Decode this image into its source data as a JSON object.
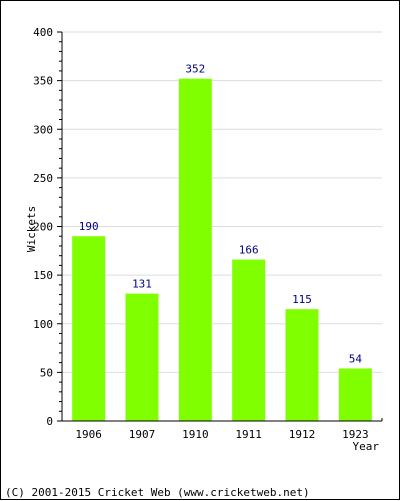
{
  "chart_data": {
    "type": "bar",
    "categories": [
      "1906",
      "1907",
      "1910",
      "1911",
      "1912",
      "1923"
    ],
    "values": [
      190,
      131,
      352,
      166,
      115,
      54
    ],
    "data_labels": [
      "190",
      "131",
      "352",
      "166",
      "115",
      "54"
    ],
    "title": "",
    "xlabel": "Year",
    "ylabel": "Wickets",
    "ylim": [
      0,
      400
    ],
    "yticks": [
      0,
      50,
      100,
      150,
      200,
      250,
      300,
      350,
      400
    ],
    "ytick_labels": [
      "0",
      "50",
      "100",
      "150",
      "200",
      "250",
      "300",
      "350",
      "400"
    ],
    "grid": true,
    "legend": "none"
  },
  "colors": {
    "bar": "#80ff00",
    "data_label": "#000080",
    "axis": "#000000",
    "grid": "#dddddd"
  },
  "footer": {
    "copyright": "(C) 2001-2015 Cricket Web (www.cricketweb.net)"
  }
}
